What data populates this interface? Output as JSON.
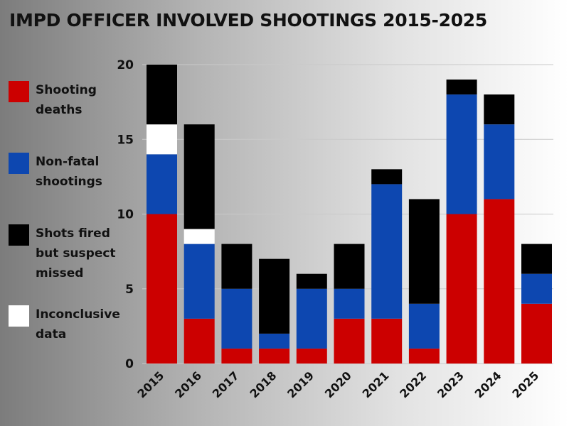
{
  "chart_data": {
    "type": "bar",
    "stacked": true,
    "title": "IMPD OFFICER INVOLVED SHOOTINGS 2015-2025",
    "xlabel": "",
    "ylabel": "",
    "ylim": [
      0,
      20
    ],
    "yticks": [
      0,
      5,
      10,
      15,
      20
    ],
    "grid": true,
    "legend_position": "left",
    "categories": [
      "2015",
      "2016",
      "2017",
      "2018",
      "2019",
      "2020",
      "2021",
      "2022",
      "2023",
      "2024",
      "2025"
    ],
    "series": [
      {
        "name": "Shooting deaths",
        "color": "#cc0000",
        "values": [
          10,
          3,
          1,
          1,
          1,
          3,
          3,
          1,
          10,
          11,
          4
        ]
      },
      {
        "name": "Non-fatal shootings",
        "color": "#0d47b0",
        "values": [
          4,
          5,
          4,
          1,
          4,
          2,
          9,
          3,
          8,
          5,
          2
        ]
      },
      {
        "name": "Inconclusive data",
        "color": "#ffffff",
        "values": [
          2,
          1,
          0,
          0,
          0,
          0,
          0,
          0,
          0,
          0,
          0
        ]
      },
      {
        "name": "Shots fired but suspect missed",
        "color": "#000000",
        "values": [
          4,
          7,
          3,
          5,
          1,
          3,
          1,
          7,
          1,
          2,
          2
        ]
      }
    ],
    "legend": [
      {
        "label": "Shooting deaths",
        "color": "#cc0000"
      },
      {
        "label": "Non-fatal shootings",
        "color": "#0d47b0"
      },
      {
        "label": "Shots fired but suspect missed",
        "color": "#000000"
      },
      {
        "label": "Inconclusive data",
        "color": "#ffffff"
      }
    ]
  }
}
